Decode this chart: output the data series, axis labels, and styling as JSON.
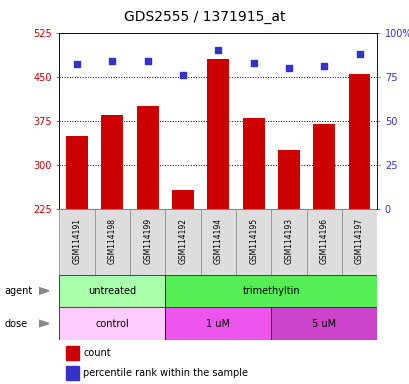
{
  "title": "GDS2555 / 1371915_at",
  "samples": [
    "GSM114191",
    "GSM114198",
    "GSM114199",
    "GSM114192",
    "GSM114194",
    "GSM114195",
    "GSM114193",
    "GSM114196",
    "GSM114197"
  ],
  "counts": [
    350,
    385,
    400,
    258,
    480,
    380,
    325,
    370,
    455
  ],
  "percentiles": [
    82,
    84,
    84,
    76,
    90,
    83,
    80,
    81,
    88
  ],
  "ylim_left": [
    225,
    525
  ],
  "ylim_right": [
    0,
    100
  ],
  "yticks_left": [
    225,
    300,
    375,
    450,
    525
  ],
  "yticks_right": [
    0,
    25,
    50,
    75,
    100
  ],
  "ytick_labels_right": [
    "0",
    "25",
    "50",
    "75",
    "100%"
  ],
  "bar_color": "#cc0000",
  "dot_color": "#3333cc",
  "agent_groups": [
    {
      "label": "untreated",
      "start": 0,
      "end": 3,
      "color": "#aaffaa"
    },
    {
      "label": "trimethyltin",
      "start": 3,
      "end": 9,
      "color": "#55ee55"
    }
  ],
  "dose_groups": [
    {
      "label": "control",
      "start": 0,
      "end": 3,
      "color": "#ffccff"
    },
    {
      "label": "1 uM",
      "start": 3,
      "end": 6,
      "color": "#ee55ee"
    },
    {
      "label": "5 uM",
      "start": 6,
      "end": 9,
      "color": "#cc44cc"
    }
  ],
  "legend_count_label": "count",
  "legend_pct_label": "percentile rank within the sample",
  "agent_label": "agent",
  "dose_label": "dose",
  "bg_color": "#ffffff",
  "bar_bottom": 225,
  "title_fontsize": 10,
  "tick_fontsize": 7,
  "sample_fontsize": 5.5,
  "row_fontsize": 7,
  "legend_fontsize": 7
}
